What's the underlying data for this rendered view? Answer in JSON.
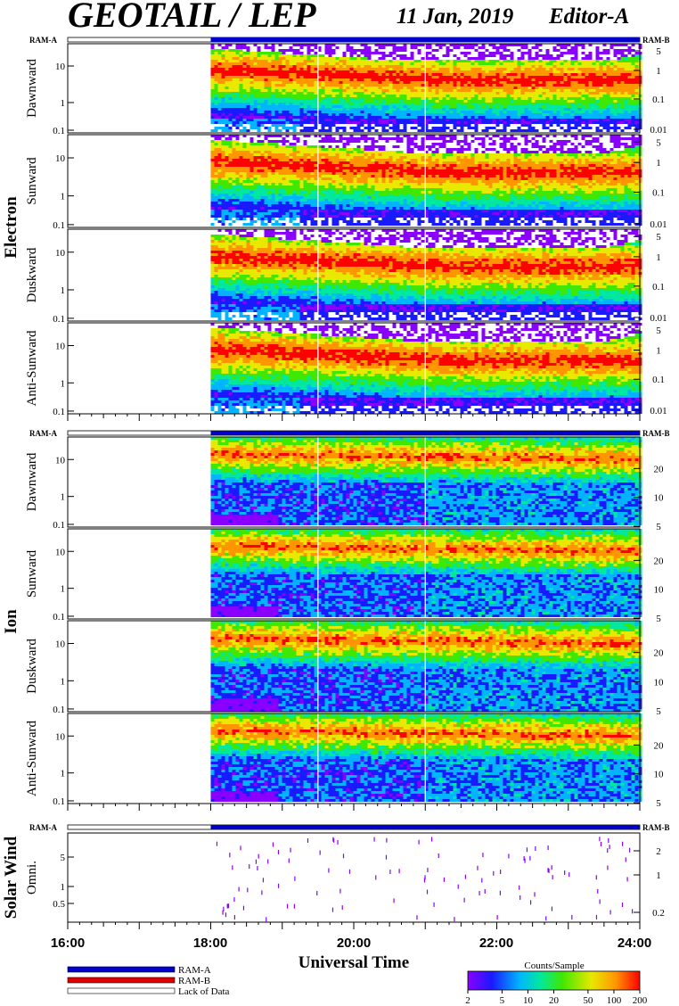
{
  "header": {
    "title": "GEOTAIL / LEP",
    "date": "11 Jan, 2019",
    "editor": "Editor-A"
  },
  "chart_data": {
    "type": "heatmap",
    "xlabel": "Universal Time",
    "xlim": [
      "16:00",
      "24:00"
    ],
    "x_ticks": [
      "16:00",
      "18:00",
      "20:00",
      "22:00",
      "24:00"
    ],
    "data_start": "18:00",
    "ram_labels": {
      "left": "RAM-A",
      "right": "RAM-B"
    },
    "groups": [
      {
        "name": "Electron",
        "panels": [
          {
            "name": "Dawnward",
            "left_ticks": [
              "10",
              "1",
              "0.1"
            ],
            "right_ticks": [
              "5",
              "1",
              "0.1",
              "0.01"
            ]
          },
          {
            "name": "Sunward",
            "left_ticks": [
              "10",
              "1",
              "0.1"
            ],
            "right_ticks": [
              "5",
              "1",
              "0.1",
              "0.01"
            ]
          },
          {
            "name": "Duskward",
            "left_ticks": [
              "10",
              "1",
              "0.1"
            ],
            "right_ticks": [
              "5",
              "1",
              "0.1",
              "0.01"
            ]
          },
          {
            "name": "Anti-Sunward",
            "left_ticks": [
              "10",
              "1",
              "0.1"
            ],
            "right_ticks": [
              "5",
              "1",
              "0.1",
              "0.01"
            ]
          }
        ]
      },
      {
        "name": "Ion",
        "panels": [
          {
            "name": "Dawnward",
            "left_ticks": [
              "10",
              "1",
              "0.1"
            ],
            "right_ticks": [
              "20",
              "10",
              "5"
            ]
          },
          {
            "name": "Sunward",
            "left_ticks": [
              "10",
              "1",
              "0.1"
            ],
            "right_ticks": [
              "20",
              "10",
              "5"
            ]
          },
          {
            "name": "Duskward",
            "left_ticks": [
              "10",
              "1",
              "0.1"
            ],
            "right_ticks": [
              "20",
              "10",
              "5"
            ]
          },
          {
            "name": "Anti-Sunward",
            "left_ticks": [
              "10",
              "1",
              "0.1"
            ],
            "right_ticks": [
              "20",
              "10",
              "5"
            ]
          }
        ]
      },
      {
        "name": "Solar Wind",
        "panels": [
          {
            "name": "Omni.",
            "left_ticks": [
              "5",
              "1",
              "0.5"
            ],
            "right_ticks": [
              "2",
              "1",
              "0.2"
            ]
          }
        ]
      }
    ],
    "legend": {
      "items": [
        {
          "label": "RAM-A",
          "color": "#0000c8"
        },
        {
          "label": "RAM-B",
          "color": "#e00000"
        },
        {
          "label": "Lack of Data",
          "color": "#ffffff"
        }
      ]
    },
    "colorbar": {
      "title": "Counts/Sample",
      "ticks": [
        "2",
        "5",
        "10",
        "20",
        "50",
        "100",
        "200"
      ],
      "scale": "log",
      "colors": [
        "#8a00ff",
        "#1a1aff",
        "#00b4ff",
        "#00e8a0",
        "#40e800",
        "#e8e800",
        "#ff9600",
        "#ff0000"
      ]
    }
  }
}
